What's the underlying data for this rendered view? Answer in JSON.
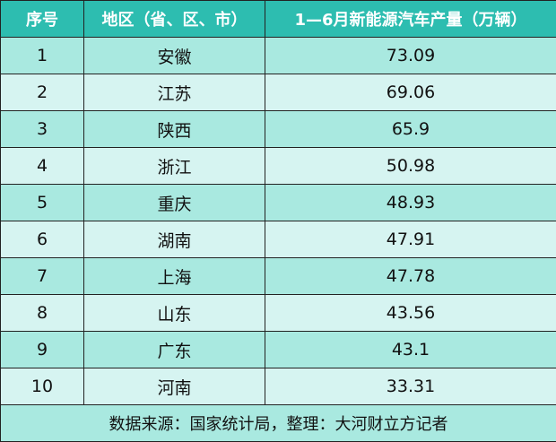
{
  "table": {
    "header": [
      "序号",
      "地区（省、区、市）",
      "1—6月新能源汽车产量（万辆）"
    ],
    "rows": [
      [
        "1",
        "安徽",
        "73.09"
      ],
      [
        "2",
        "江苏",
        "69.06"
      ],
      [
        "3",
        "陕西",
        "65.9"
      ],
      [
        "4",
        "浙江",
        "50.98"
      ],
      [
        "5",
        "重庆",
        "48.93"
      ],
      [
        "6",
        "湖南",
        "47.91"
      ],
      [
        "7",
        "上海",
        "47.78"
      ],
      [
        "8",
        "山东",
        "43.56"
      ],
      [
        "9",
        "广东",
        "43.1"
      ],
      [
        "10",
        "河南",
        "33.31"
      ]
    ],
    "footer": "数据来源：国家统计局，整理：大河财立方记者"
  }
}
